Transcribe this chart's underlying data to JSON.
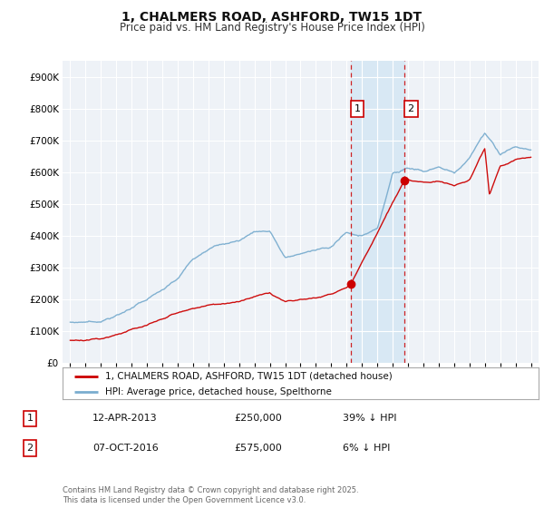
{
  "title": "1, CHALMERS ROAD, ASHFORD, TW15 1DT",
  "subtitle": "Price paid vs. HM Land Registry's House Price Index (HPI)",
  "legend_line1": "1, CHALMERS ROAD, ASHFORD, TW15 1DT (detached house)",
  "legend_line2": "HPI: Average price, detached house, Spelthorne",
  "transaction1_label": "1",
  "transaction1_date": "12-APR-2013",
  "transaction1_price": "£250,000",
  "transaction1_hpi": "39% ↓ HPI",
  "transaction1_year": 2013.28,
  "transaction1_value": 250000,
  "transaction2_label": "2",
  "transaction2_date": "07-OCT-2016",
  "transaction2_price": "£575,000",
  "transaction2_hpi": "6% ↓ HPI",
  "transaction2_year": 2016.77,
  "transaction2_value": 575000,
  "red_color": "#cc0000",
  "blue_color": "#7aadcf",
  "background_color": "#eef2f7",
  "shaded_color": "#d8e8f4",
  "grid_color": "#ffffff",
  "footer": "Contains HM Land Registry data © Crown copyright and database right 2025.\nThis data is licensed under the Open Government Licence v3.0.",
  "ylim": [
    0,
    950000
  ],
  "xlim_start": 1994.5,
  "xlim_end": 2025.5,
  "hpi_key_t": [
    1995,
    1996,
    1997,
    1998,
    1999,
    2000,
    2001,
    2002,
    2003,
    2004,
    2005,
    2006,
    2007,
    2008,
    2009,
    2010,
    2011,
    2012,
    2013,
    2014,
    2015,
    2016,
    2017,
    2018,
    2019,
    2020,
    2021,
    2022,
    2022.5,
    2023,
    2023.5,
    2024,
    2025
  ],
  "hpi_key_v": [
    128000,
    130000,
    132000,
    148000,
    175000,
    200000,
    230000,
    265000,
    330000,
    360000,
    375000,
    385000,
    415000,
    415000,
    330000,
    345000,
    355000,
    368000,
    410000,
    400000,
    425000,
    595000,
    615000,
    605000,
    615000,
    600000,
    645000,
    725000,
    695000,
    655000,
    670000,
    680000,
    670000
  ],
  "red_key_t": [
    1995,
    1996,
    1997,
    1998,
    1999,
    2000,
    2001,
    2002,
    2003,
    2004,
    2005,
    2006,
    2007,
    2008,
    2009,
    2010,
    2011,
    2012,
    2013,
    2013.28,
    2016.77,
    2017,
    2018,
    2019,
    2020,
    2021,
    2022,
    2022.3,
    2023,
    2024,
    2025
  ],
  "red_key_v": [
    72000,
    74000,
    77000,
    90000,
    105000,
    118000,
    140000,
    158000,
    172000,
    182000,
    188000,
    195000,
    210000,
    220000,
    195000,
    200000,
    205000,
    218000,
    238000,
    250000,
    575000,
    578000,
    568000,
    572000,
    558000,
    575000,
    675000,
    528000,
    618000,
    638000,
    648000
  ]
}
